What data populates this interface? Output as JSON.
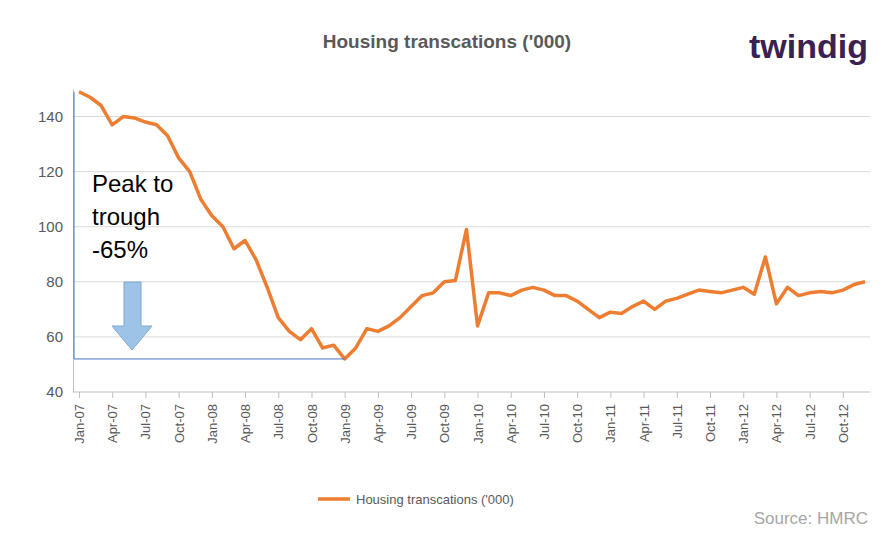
{
  "chart_data": {
    "type": "line",
    "title": "Housing transcations ('000)",
    "logo": "twindig",
    "source": "Source: HMRC",
    "annotation": [
      "Peak to",
      "trough",
      "-65%"
    ],
    "categories": [
      "Jan-07",
      null,
      null,
      "Apr-07",
      null,
      null,
      "Jul-07",
      null,
      null,
      "Oct-07",
      null,
      null,
      "Jan-08",
      null,
      null,
      "Apr-08",
      null,
      null,
      "Jul-08",
      null,
      null,
      "Oct-08",
      null,
      null,
      "Jan-09",
      null,
      null,
      "Apr-09",
      null,
      null,
      "Jul-09",
      null,
      null,
      "Oct-09",
      null,
      null,
      "Jan-10",
      null,
      null,
      "Apr-10",
      null,
      null,
      "Jul-10",
      null,
      null,
      "Oct-10",
      null,
      null,
      "Jan-11",
      null,
      null,
      "Apr-11",
      null,
      null,
      "Jul-11",
      null,
      null,
      "Oct-11",
      null,
      null,
      "Jan-12",
      null,
      null,
      "Apr-12",
      null,
      null,
      "Jul-12",
      null,
      null,
      "Oct-12",
      null,
      null
    ],
    "series": [
      {
        "name": "Housing transcations ('000)",
        "color": "#ed7d31",
        "values": [
          149,
          147,
          144,
          137,
          140,
          139.5,
          138,
          137,
          133,
          125,
          120,
          110,
          104,
          100,
          92,
          95,
          88,
          78,
          67,
          62,
          59,
          63,
          56,
          57,
          52,
          56,
          63,
          62,
          64,
          67,
          71,
          75,
          76,
          80,
          80.5,
          99,
          64,
          76,
          76,
          75,
          77,
          78,
          77,
          75,
          75,
          73,
          70,
          67,
          69,
          68.5,
          71,
          73,
          70,
          73,
          74,
          75.5,
          77,
          76.5,
          76,
          77,
          78,
          75.5,
          89,
          72,
          78,
          75,
          76,
          76.5,
          76,
          77,
          79,
          80
        ]
      }
    ],
    "ylim": [
      40,
      150
    ],
    "yticks": [
      40,
      60,
      80,
      100,
      120,
      140
    ],
    "grid": true,
    "legend": "bottom"
  }
}
